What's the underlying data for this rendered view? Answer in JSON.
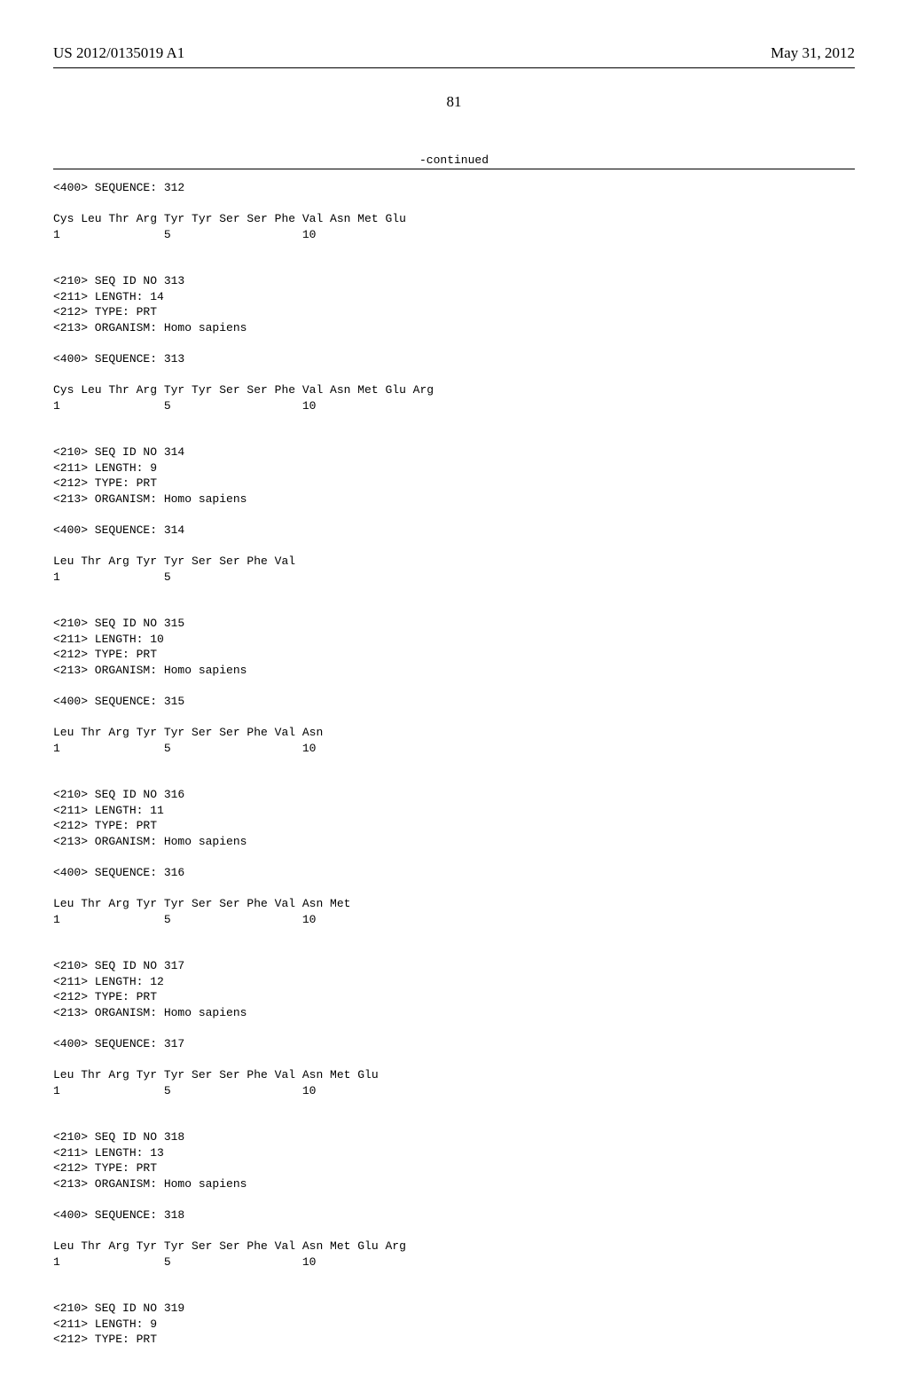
{
  "header": {
    "pub_number": "US 2012/0135019 A1",
    "pub_date": "May 31, 2012"
  },
  "page_number": "81",
  "continued_label": "-continued",
  "sequences": [
    {
      "seq_line": "<400> SEQUENCE: 312",
      "peptide": "Cys Leu Thr Arg Tyr Tyr Ser Ser Phe Val Asn Met Glu",
      "numbers": "1               5                   10"
    },
    {
      "meta": [
        "<210> SEQ ID NO 313",
        "<211> LENGTH: 14",
        "<212> TYPE: PRT",
        "<213> ORGANISM: Homo sapiens"
      ],
      "seq_line": "<400> SEQUENCE: 313",
      "peptide": "Cys Leu Thr Arg Tyr Tyr Ser Ser Phe Val Asn Met Glu Arg",
      "numbers": "1               5                   10"
    },
    {
      "meta": [
        "<210> SEQ ID NO 314",
        "<211> LENGTH: 9",
        "<212> TYPE: PRT",
        "<213> ORGANISM: Homo sapiens"
      ],
      "seq_line": "<400> SEQUENCE: 314",
      "peptide": "Leu Thr Arg Tyr Tyr Ser Ser Phe Val",
      "numbers": "1               5"
    },
    {
      "meta": [
        "<210> SEQ ID NO 315",
        "<211> LENGTH: 10",
        "<212> TYPE: PRT",
        "<213> ORGANISM: Homo sapiens"
      ],
      "seq_line": "<400> SEQUENCE: 315",
      "peptide": "Leu Thr Arg Tyr Tyr Ser Ser Phe Val Asn",
      "numbers": "1               5                   10"
    },
    {
      "meta": [
        "<210> SEQ ID NO 316",
        "<211> LENGTH: 11",
        "<212> TYPE: PRT",
        "<213> ORGANISM: Homo sapiens"
      ],
      "seq_line": "<400> SEQUENCE: 316",
      "peptide": "Leu Thr Arg Tyr Tyr Ser Ser Phe Val Asn Met",
      "numbers": "1               5                   10"
    },
    {
      "meta": [
        "<210> SEQ ID NO 317",
        "<211> LENGTH: 12",
        "<212> TYPE: PRT",
        "<213> ORGANISM: Homo sapiens"
      ],
      "seq_line": "<400> SEQUENCE: 317",
      "peptide": "Leu Thr Arg Tyr Tyr Ser Ser Phe Val Asn Met Glu",
      "numbers": "1               5                   10"
    },
    {
      "meta": [
        "<210> SEQ ID NO 318",
        "<211> LENGTH: 13",
        "<212> TYPE: PRT",
        "<213> ORGANISM: Homo sapiens"
      ],
      "seq_line": "<400> SEQUENCE: 318",
      "peptide": "Leu Thr Arg Tyr Tyr Ser Ser Phe Val Asn Met Glu Arg",
      "numbers": "1               5                   10"
    },
    {
      "meta": [
        "<210> SEQ ID NO 319",
        "<211> LENGTH: 9",
        "<212> TYPE: PRT"
      ]
    }
  ]
}
